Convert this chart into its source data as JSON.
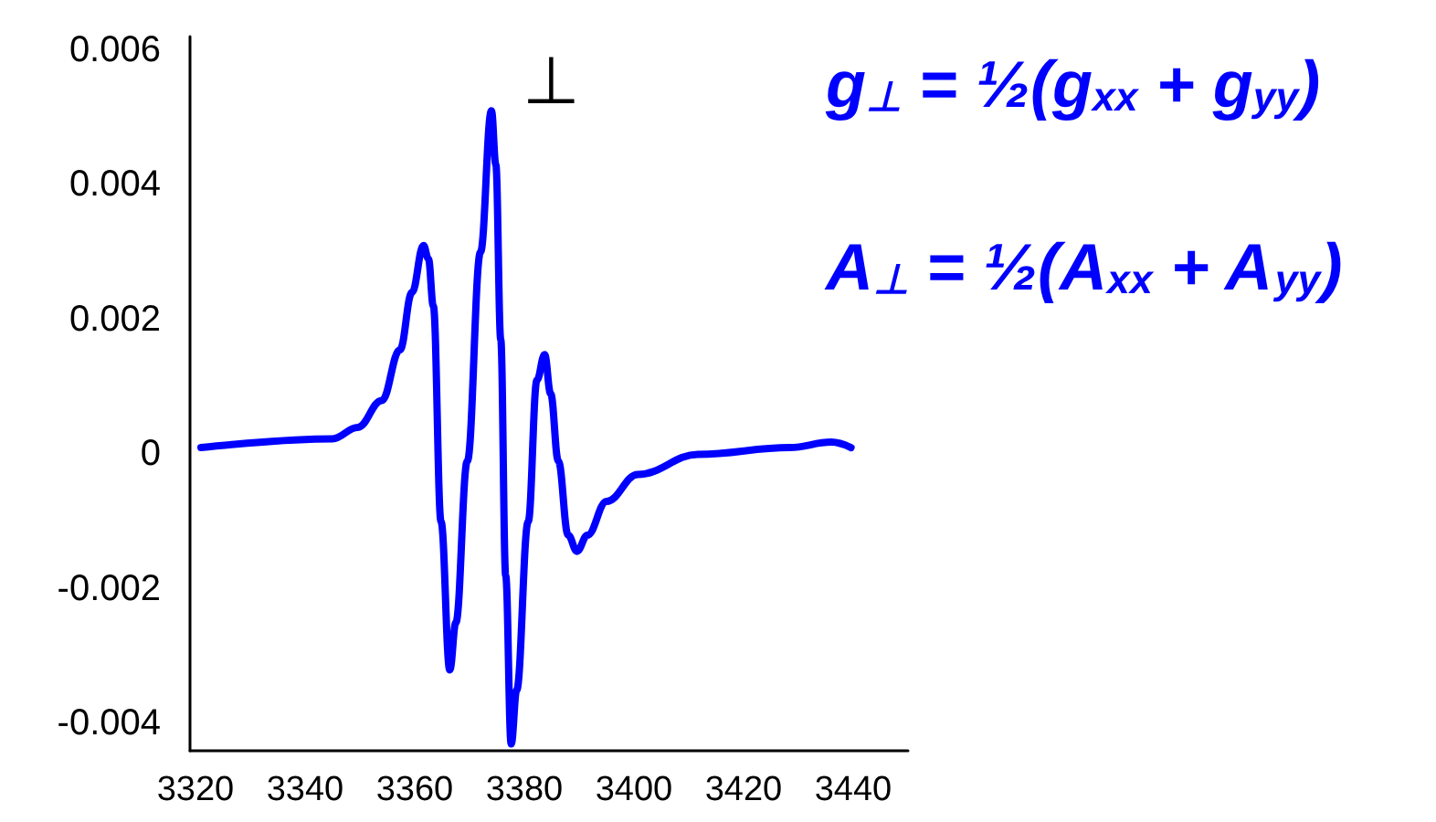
{
  "chart_data": {
    "type": "line",
    "x": [
      3321,
      3345,
      3349.6,
      3354,
      3357.3,
      3359.5,
      3361.6,
      3362.5,
      3363.4,
      3364.8,
      3366.4,
      3367.5,
      3369.6,
      3372,
      3374,
      3374.8,
      3375.7,
      3376.6,
      3377.6,
      3378.6,
      3380.7,
      3382.3,
      3383.7,
      3384.8,
      3386.2,
      3388,
      3389.6,
      3391.5,
      3395,
      3400.7,
      3411.8,
      3428.4,
      3436,
      3439.6
    ],
    "series": [
      {
        "color": "#0000ff",
        "values": [
          0.0001,
          0.00023,
          0.0004,
          0.0008,
          0.00155,
          0.0024,
          0.0031,
          0.0029,
          0.0022,
          -0.001,
          -0.0032,
          -0.0025,
          -0.0001,
          0.003,
          0.0051,
          0.0043,
          0.0017,
          -0.0018,
          -0.0043,
          -0.0035,
          -0.001,
          0.0011,
          0.00148,
          0.0009,
          -0.0001,
          -0.0012,
          -0.00144,
          -0.0012,
          -0.0007,
          -0.0003,
          0,
          0.0001,
          0.00018,
          0.0001
        ]
      }
    ],
    "xlim": [
      3319,
      3450
    ],
    "xticks": [
      3320,
      3340,
      3360,
      3380,
      3400,
      3420,
      3440
    ],
    "ylim": [
      -0.0044,
      0.0062
    ],
    "yticks": [
      {
        "value": -0.004,
        "label": "-0.004"
      },
      {
        "value": -0.002,
        "label": "-0.002"
      },
      0,
      {
        "value": 0.002,
        "label": "0.002"
      },
      {
        "value": 0.004,
        "label": "0.004"
      },
      {
        "value": 0.006,
        "label": "0.006"
      }
    ],
    "grid": false,
    "marker": "none",
    "line_style": "solid",
    "annotations": [
      "⊥",
      "g$_{⊥}$ = ½(g$_{xx}$ + g$_{yy}$)",
      "A$_{⊥}$ = ½(A$_{xx}$ + A$_{yy}$)"
    ]
  }
}
